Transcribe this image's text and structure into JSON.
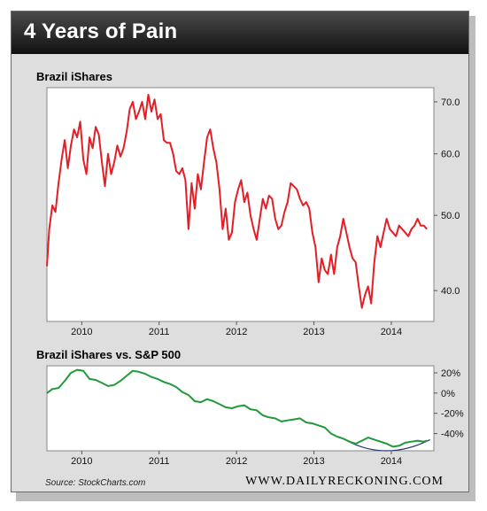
{
  "header": {
    "title": "4 Years of Pain"
  },
  "footer": {
    "source": "Source: StockCharts.com",
    "brand": "WWW.DAILYRECKONING.COM"
  },
  "chart_data": [
    {
      "type": "line",
      "title": "Brazil iShares",
      "color": "#e41e26",
      "xlim": [
        2009.55,
        2014.55
      ],
      "ylim": [
        36.5,
        73
      ],
      "yscale": "log",
      "xticks": [
        "2010",
        "2011",
        "2012",
        "2013",
        "2014"
      ],
      "yticks": [
        "40.0",
        "50.0",
        "60.0",
        "70.0"
      ],
      "x": [
        2009.55,
        2009.58,
        2009.62,
        2009.66,
        2009.7,
        2009.74,
        2009.78,
        2009.82,
        2009.86,
        2009.9,
        2009.94,
        2009.98,
        2010.02,
        2010.06,
        2010.1,
        2010.14,
        2010.18,
        2010.22,
        2010.26,
        2010.3,
        2010.34,
        2010.38,
        2010.42,
        2010.46,
        2010.5,
        2010.54,
        2010.58,
        2010.62,
        2010.66,
        2010.7,
        2010.74,
        2010.78,
        2010.82,
        2010.86,
        2010.9,
        2010.94,
        2010.98,
        2011.02,
        2011.06,
        2011.1,
        2011.14,
        2011.18,
        2011.22,
        2011.26,
        2011.3,
        2011.34,
        2011.38,
        2011.42,
        2011.46,
        2011.5,
        2011.54,
        2011.58,
        2011.62,
        2011.66,
        2011.7,
        2011.74,
        2011.78,
        2011.82,
        2011.86,
        2011.9,
        2011.94,
        2011.98,
        2012.02,
        2012.06,
        2012.1,
        2012.14,
        2012.18,
        2012.22,
        2012.26,
        2012.3,
        2012.34,
        2012.38,
        2012.42,
        2012.46,
        2012.5,
        2012.54,
        2012.58,
        2012.62,
        2012.66,
        2012.7,
        2012.74,
        2012.78,
        2012.82,
        2012.86,
        2012.9,
        2012.94,
        2012.98,
        2013.02,
        2013.06,
        2013.1,
        2013.14,
        2013.18,
        2013.22,
        2013.26,
        2013.3,
        2013.34,
        2013.38,
        2013.42,
        2013.46,
        2013.5,
        2013.54,
        2013.58,
        2013.62,
        2013.66,
        2013.7,
        2013.74,
        2013.78,
        2013.82,
        2013.86,
        2013.9,
        2013.94,
        2013.98,
        2014.02,
        2014.06,
        2014.1,
        2014.14,
        2014.18,
        2014.22,
        2014.26,
        2014.3,
        2014.34,
        2014.38,
        2014.42,
        2014.46
      ],
      "y": [
        43.0,
        48.0,
        51.5,
        50.5,
        55.0,
        59.0,
        62.5,
        57.5,
        61.5,
        64.5,
        63.0,
        66.0,
        59.0,
        56.5,
        63.0,
        61.0,
        65.0,
        63.5,
        58.5,
        54.5,
        60.0,
        56.5,
        58.5,
        61.5,
        59.5,
        61.0,
        64.0,
        68.5,
        70.0,
        66.5,
        68.0,
        70.0,
        66.5,
        71.5,
        68.0,
        70.5,
        66.5,
        67.5,
        62.5,
        62.0,
        62.0,
        60.0,
        57.0,
        56.5,
        57.5,
        55.5,
        48.0,
        55.0,
        51.0,
        56.5,
        54.0,
        58.5,
        63.0,
        64.5,
        61.0,
        58.5,
        54.0,
        48.0,
        51.0,
        46.5,
        47.5,
        52.0,
        54.0,
        55.5,
        52.0,
        53.5,
        50.0,
        48.0,
        46.5,
        49.5,
        52.5,
        51.0,
        53.0,
        52.5,
        49.5,
        48.0,
        48.5,
        50.5,
        52.0,
        55.0,
        54.5,
        54.0,
        52.5,
        51.5,
        52.0,
        51.0,
        47.5,
        45.5,
        41.0,
        44.0,
        42.5,
        42.0,
        44.5,
        42.0,
        45.5,
        47.0,
        49.5,
        47.5,
        45.5,
        44.0,
        43.5,
        40.5,
        38.0,
        39.5,
        40.5,
        38.5,
        43.5,
        47.0,
        45.5,
        47.5,
        49.5,
        48.0,
        47.5,
        47.0,
        48.5,
        48.0,
        47.5,
        47.0,
        48.0,
        48.5,
        49.5,
        48.5,
        48.5,
        48.0
      ],
      "grid": false
    },
    {
      "type": "line",
      "title": "Brazil iShares vs. S&P 500",
      "color": "#1f9a3a",
      "xlim": [
        2009.55,
        2014.55
      ],
      "ylim": [
        -57,
        27
      ],
      "xticks": [
        "2010",
        "2011",
        "2012",
        "2013",
        "2014"
      ],
      "yticks": [
        "20%",
        "0%",
        "-20%",
        "-40%"
      ],
      "ytick_values": [
        20,
        0,
        -20,
        -40
      ],
      "x": [
        2009.55,
        2009.62,
        2009.7,
        2009.78,
        2009.86,
        2009.94,
        2010.02,
        2010.1,
        2010.18,
        2010.26,
        2010.34,
        2010.42,
        2010.5,
        2010.58,
        2010.66,
        2010.74,
        2010.82,
        2010.9,
        2010.98,
        2011.06,
        2011.14,
        2011.22,
        2011.3,
        2011.38,
        2011.46,
        2011.54,
        2011.62,
        2011.7,
        2011.78,
        2011.86,
        2011.94,
        2012.02,
        2012.1,
        2012.18,
        2012.26,
        2012.34,
        2012.42,
        2012.5,
        2012.58,
        2012.66,
        2012.74,
        2012.82,
        2012.9,
        2012.98,
        2013.06,
        2013.14,
        2013.22,
        2013.3,
        2013.38,
        2013.46,
        2013.54,
        2013.62,
        2013.7,
        2013.78,
        2013.86,
        2013.94,
        2014.02,
        2014.1,
        2014.18,
        2014.26,
        2014.34,
        2014.42,
        2014.46
      ],
      "y": [
        0,
        4,
        5,
        12,
        20,
        23,
        22,
        14,
        13,
        10,
        7,
        8,
        12,
        17,
        22,
        21,
        19,
        16,
        14,
        11,
        9,
        6,
        1,
        -2,
        -8,
        -9,
        -6,
        -8,
        -11,
        -14,
        -15,
        -13,
        -12,
        -16,
        -17,
        -22,
        -24,
        -25,
        -28,
        -27,
        -26,
        -25,
        -29,
        -30,
        -32,
        -34,
        -40,
        -43,
        -45,
        -48,
        -50,
        -47,
        -44,
        -46,
        -48,
        -50,
        -53,
        -52,
        -49,
        -48,
        -47,
        -48,
        -47
      ]
    }
  ]
}
